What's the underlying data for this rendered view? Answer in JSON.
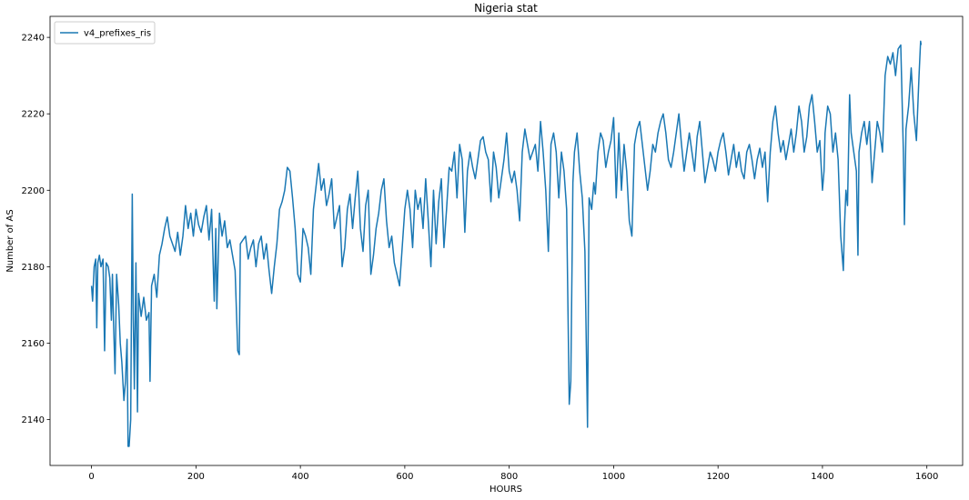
{
  "chart_data": {
    "type": "line",
    "title": "Nigeria stat",
    "x_label": "HOURS",
    "y_label": "Number of AS",
    "legend": "upper left",
    "xlim": [
      -79.5,
      1668.5
    ],
    "ylim": [
      2128,
      2245.5
    ],
    "xticks": [
      0,
      200,
      400,
      600,
      800,
      1000,
      1200,
      1400,
      1600
    ],
    "yticks": [
      2140,
      2160,
      2180,
      2200,
      2220,
      2240
    ],
    "x": [
      0,
      2,
      5,
      8,
      10,
      12,
      15,
      18,
      22,
      25,
      28,
      32,
      35,
      38,
      40,
      42,
      45,
      48,
      52,
      55,
      58,
      62,
      65,
      68,
      70,
      72,
      75,
      78,
      80,
      82,
      85,
      88,
      90,
      95,
      100,
      105,
      110,
      112,
      115,
      120,
      125,
      130,
      135,
      140,
      145,
      150,
      155,
      160,
      165,
      170,
      175,
      180,
      185,
      190,
      195,
      200,
      205,
      210,
      215,
      220,
      225,
      230,
      235,
      238,
      240,
      245,
      250,
      255,
      260,
      265,
      270,
      275,
      280,
      283,
      285,
      290,
      295,
      300,
      305,
      310,
      315,
      320,
      325,
      330,
      335,
      340,
      345,
      350,
      355,
      360,
      365,
      370,
      375,
      380,
      385,
      390,
      395,
      400,
      405,
      410,
      415,
      420,
      425,
      430,
      435,
      440,
      445,
      450,
      455,
      460,
      465,
      470,
      475,
      480,
      485,
      490,
      495,
      500,
      505,
      510,
      515,
      520,
      525,
      530,
      535,
      540,
      545,
      550,
      555,
      560,
      565,
      570,
      575,
      580,
      585,
      590,
      595,
      600,
      605,
      610,
      615,
      620,
      625,
      630,
      635,
      640,
      645,
      650,
      655,
      660,
      665,
      670,
      675,
      680,
      685,
      690,
      695,
      700,
      705,
      710,
      715,
      720,
      725,
      730,
      735,
      740,
      745,
      750,
      755,
      760,
      765,
      770,
      775,
      780,
      785,
      790,
      795,
      800,
      805,
      810,
      815,
      820,
      825,
      830,
      835,
      840,
      845,
      850,
      855,
      860,
      865,
      870,
      875,
      880,
      885,
      890,
      895,
      900,
      905,
      910,
      915,
      918,
      922,
      925,
      930,
      935,
      940,
      945,
      950,
      953,
      958,
      962,
      965,
      970,
      975,
      980,
      985,
      990,
      995,
      1000,
      1005,
      1010,
      1015,
      1020,
      1025,
      1030,
      1035,
      1040,
      1045,
      1050,
      1055,
      1060,
      1065,
      1070,
      1075,
      1080,
      1085,
      1090,
      1095,
      1100,
      1105,
      1110,
      1115,
      1120,
      1125,
      1130,
      1135,
      1140,
      1145,
      1150,
      1155,
      1160,
      1165,
      1170,
      1175,
      1180,
      1185,
      1190,
      1195,
      1200,
      1205,
      1210,
      1215,
      1220,
      1225,
      1230,
      1235,
      1240,
      1245,
      1250,
      1255,
      1260,
      1265,
      1270,
      1275,
      1280,
      1285,
      1290,
      1295,
      1300,
      1305,
      1310,
      1315,
      1320,
      1325,
      1330,
      1335,
      1340,
      1345,
      1350,
      1355,
      1360,
      1365,
      1370,
      1375,
      1380,
      1385,
      1390,
      1395,
      1400,
      1403,
      1405,
      1410,
      1415,
      1420,
      1425,
      1430,
      1435,
      1440,
      1442,
      1445,
      1448,
      1452,
      1455,
      1460,
      1465,
      1468,
      1470,
      1475,
      1480,
      1485,
      1490,
      1495,
      1500,
      1505,
      1510,
      1515,
      1520,
      1525,
      1530,
      1535,
      1540,
      1545,
      1550,
      1555,
      1557,
      1560,
      1565,
      1570,
      1575,
      1580,
      1585,
      1588,
      1589
    ],
    "series": [
      {
        "name": "v4_prefixes_ris",
        "color": "#1a78b4",
        "values": [
          2175,
          2171,
          2180,
          2182,
          2164,
          2181,
          2183,
          2180,
          2182,
          2158,
          2181,
          2180,
          2177,
          2166,
          2178,
          2166,
          2152,
          2178,
          2170,
          2160,
          2155,
          2145,
          2150,
          2161,
          2133,
          2133,
          2140,
          2199,
          2166,
          2148,
          2181,
          2142,
          2173,
          2167,
          2172,
          2166,
          2168,
          2150,
          2175,
          2178,
          2172,
          2183,
          2186,
          2190,
          2193,
          2188,
          2186,
          2184,
          2189,
          2183,
          2188,
          2196,
          2190,
          2194,
          2188,
          2195,
          2191,
          2189,
          2193,
          2196,
          2187,
          2195,
          2171,
          2190,
          2169,
          2194,
          2188,
          2192,
          2185,
          2187,
          2183,
          2179,
          2158,
          2157,
          2186,
          2187,
          2188,
          2182,
          2185,
          2187,
          2180,
          2186,
          2188,
          2182,
          2186,
          2179,
          2173,
          2180,
          2186,
          2195,
          2197,
          2200,
          2206,
          2205,
          2198,
          2190,
          2178,
          2176,
          2190,
          2188,
          2185,
          2178,
          2195,
          2201,
          2207,
          2200,
          2203,
          2196,
          2199,
          2203,
          2190,
          2193,
          2196,
          2180,
          2185,
          2195,
          2199,
          2190,
          2198,
          2205,
          2190,
          2184,
          2196,
          2200,
          2178,
          2183,
          2190,
          2194,
          2200,
          2203,
          2192,
          2185,
          2188,
          2181,
          2178,
          2175,
          2185,
          2195,
          2200,
          2195,
          2185,
          2200,
          2195,
          2198,
          2190,
          2203,
          2192,
          2180,
          2200,
          2186,
          2197,
          2203,
          2185,
          2195,
          2206,
          2205,
          2210,
          2198,
          2212,
          2208,
          2189,
          2205,
          2210,
          2206,
          2203,
          2208,
          2213,
          2214,
          2210,
          2208,
          2197,
          2210,
          2206,
          2198,
          2203,
          2208,
          2215,
          2205,
          2202,
          2205,
          2200,
          2192,
          2210,
          2216,
          2212,
          2208,
          2210,
          2212,
          2205,
          2218,
          2210,
          2200,
          2184,
          2212,
          2215,
          2210,
          2198,
          2210,
          2205,
          2195,
          2144,
          2150,
          2202,
          2210,
          2215,
          2205,
          2198,
          2184,
          2138,
          2198,
          2195,
          2202,
          2199,
          2210,
          2215,
          2213,
          2206,
          2210,
          2213,
          2219,
          2198,
          2215,
          2200,
          2212,
          2205,
          2192,
          2188,
          2212,
          2216,
          2218,
          2212,
          2206,
          2200,
          2205,
          2212,
          2210,
          2215,
          2218,
          2220,
          2215,
          2208,
          2206,
          2210,
          2215,
          2220,
          2212,
          2205,
          2210,
          2215,
          2210,
          2205,
          2214,
          2218,
          2210,
          2202,
          2206,
          2210,
          2208,
          2205,
          2210,
          2213,
          2215,
          2210,
          2204,
          2208,
          2212,
          2206,
          2210,
          2205,
          2203,
          2210,
          2212,
          2208,
          2203,
          2208,
          2211,
          2206,
          2210,
          2197,
          2210,
          2218,
          2222,
          2215,
          2210,
          2213,
          2208,
          2212,
          2216,
          2210,
          2215,
          2222,
          2218,
          2210,
          2214,
          2222,
          2225,
          2218,
          2210,
          2213,
          2200,
          2205,
          2215,
          2222,
          2220,
          2210,
          2215,
          2208,
          2188,
          2179,
          2190,
          2200,
          2196,
          2225,
          2215,
          2210,
          2205,
          2183,
          2210,
          2215,
          2218,
          2212,
          2218,
          2202,
          2210,
          2218,
          2215,
          2210,
          2230,
          2235,
          2233,
          2236,
          2230,
          2237,
          2238,
          2210,
          2191,
          2216,
          2222,
          2232,
          2220,
          2213,
          2230,
          2239,
          2238
        ]
      }
    ]
  }
}
